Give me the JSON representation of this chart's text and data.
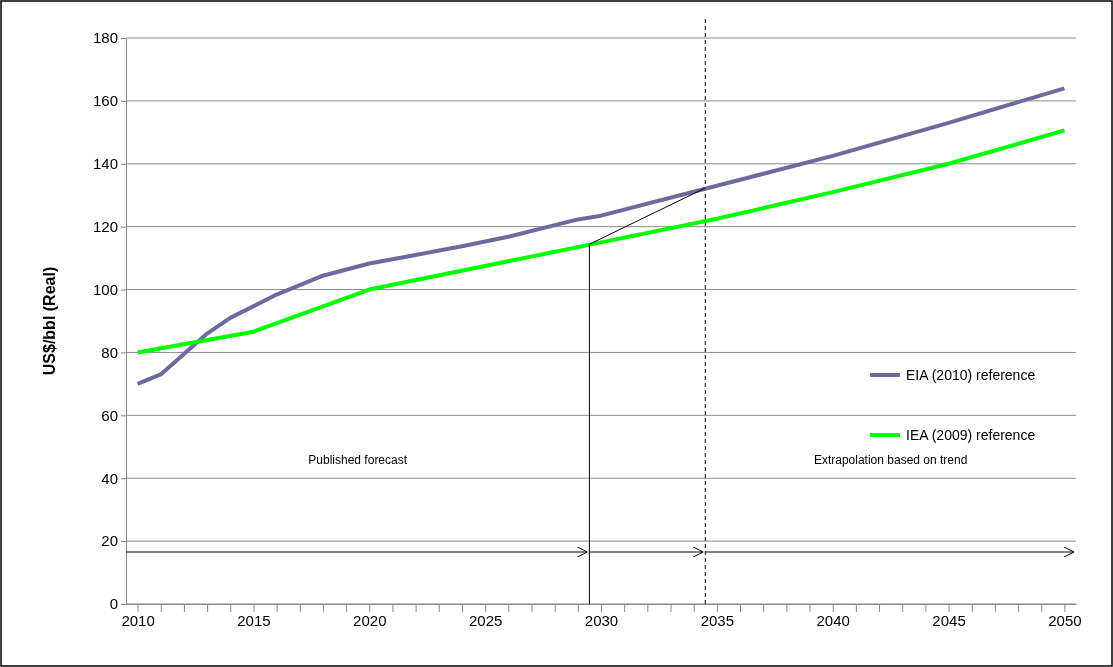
{
  "chart_data": {
    "type": "line",
    "ylabel": "US$/bbl (Real)",
    "xlim": [
      2009.5,
      2050.5
    ],
    "ylim": [
      0,
      180
    ],
    "xticks": [
      2010,
      {
        "value": 2011,
        "label": null
      },
      {
        "value": 2012,
        "label": null
      },
      {
        "value": 2013,
        "label": null
      },
      {
        "value": 2014,
        "label": null
      },
      2015,
      {
        "value": 2016,
        "label": null
      },
      {
        "value": 2017,
        "label": null
      },
      {
        "value": 2018,
        "label": null
      },
      {
        "value": 2019,
        "label": null
      },
      2020,
      {
        "value": 2021,
        "label": null
      },
      {
        "value": 2022,
        "label": null
      },
      {
        "value": 2023,
        "label": null
      },
      {
        "value": 2024,
        "label": null
      },
      2025,
      {
        "value": 2026,
        "label": null
      },
      {
        "value": 2027,
        "label": null
      },
      {
        "value": 2028,
        "label": null
      },
      {
        "value": 2029,
        "label": null
      },
      2030,
      {
        "value": 2031,
        "label": null
      },
      {
        "value": 2032,
        "label": null
      },
      {
        "value": 2033,
        "label": null
      },
      {
        "value": 2034,
        "label": null
      },
      2035,
      {
        "value": 2036,
        "label": null
      },
      {
        "value": 2037,
        "label": null
      },
      {
        "value": 2038,
        "label": null
      },
      {
        "value": 2039,
        "label": null
      },
      2040,
      {
        "value": 2041,
        "label": null
      },
      {
        "value": 2042,
        "label": null
      },
      {
        "value": 2043,
        "label": null
      },
      {
        "value": 2044,
        "label": null
      },
      2045,
      {
        "value": 2046,
        "label": null
      },
      {
        "value": 2047,
        "label": null
      },
      {
        "value": 2048,
        "label": null
      },
      {
        "value": 2049,
        "label": null
      },
      2050
    ],
    "yticks": [
      0,
      20,
      40,
      60,
      80,
      100,
      120,
      140,
      160,
      180
    ],
    "grid": "y",
    "legend": "right",
    "marker": "none",
    "line_style": "solid",
    "series": [
      {
        "name": "EIA (2010) reference",
        "color": "#6b6b9e",
        "x": [
          2010,
          2011,
          2013,
          2014,
          2016,
          2018,
          2020,
          2022,
          2024,
          2026,
          2029,
          2030,
          2035,
          2040,
          2045,
          2050
        ],
        "values": [
          70,
          73,
          86,
          91,
          98.4,
          104.4,
          108.3,
          111,
          113.8,
          116.8,
          122.3,
          123.5,
          133,
          142.5,
          153,
          164
        ]
      },
      {
        "name": "IEA (2009) reference",
        "color": "#00ff00",
        "x": [
          2010,
          2015,
          2020,
          2030,
          2035,
          2040,
          2045,
          2050
        ],
        "values": [
          80,
          86.6,
          100,
          115,
          122.5,
          131,
          140,
          150.6
        ]
      },
      {
        "color": "#000000",
        "x": [
          2029.5,
          2029.5,
          2034.5
        ],
        "values": [
          0,
          114.4,
          132.3
        ]
      }
    ],
    "ref_lines": [
      {
        "axis": "x",
        "value": 2034.5,
        "color": "#000000",
        "line_style": "dashed"
      }
    ],
    "annotations": [
      "Published forecast",
      "Extrapolation based on trend"
    ]
  }
}
